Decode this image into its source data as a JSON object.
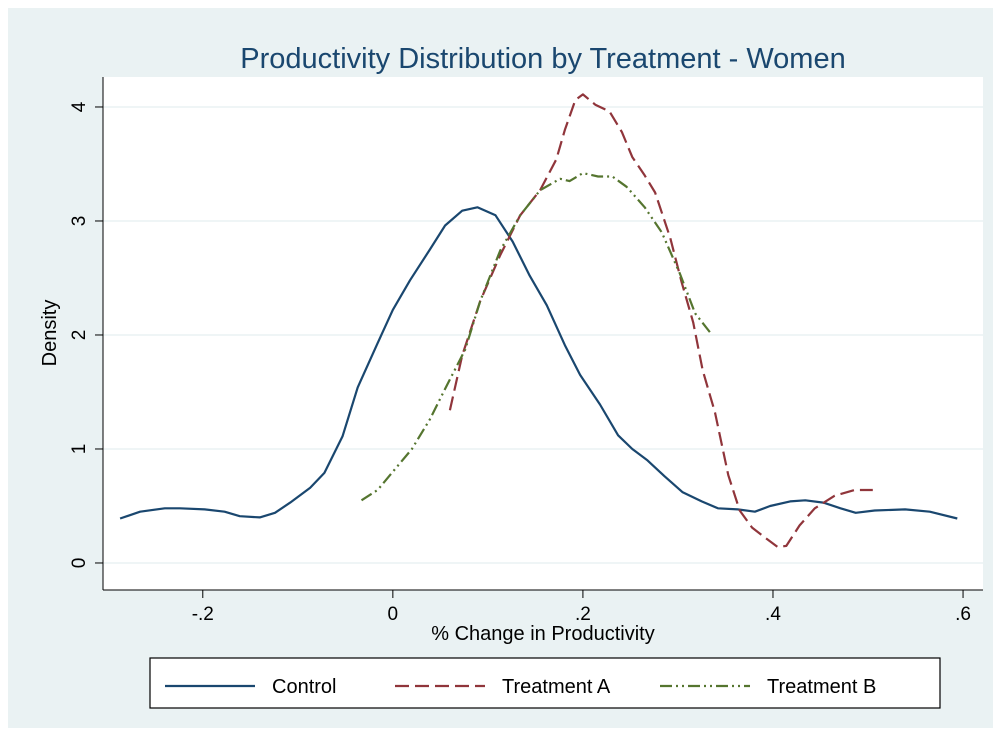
{
  "chart_data": {
    "type": "line",
    "title": "Productivity Distribution by Treatment - Women",
    "x_label": "% Change in Productivity",
    "y_label": "Density",
    "xlim": [
      -0.305,
      0.621
    ],
    "ylim": [
      -0.237,
      4.263
    ],
    "xticks": [
      {
        "value": -0.2,
        "label": "-.2"
      },
      0,
      {
        "value": 0.2,
        "label": ".2"
      },
      {
        "value": 0.4,
        "label": ".4"
      },
      {
        "value": 0.6,
        "label": ".6"
      }
    ],
    "yticks": [
      0,
      1,
      2,
      3,
      4
    ],
    "grid": true,
    "legend": "bottom",
    "series": [
      {
        "name": "Control",
        "color": "#1a476f",
        "line_style": "solid",
        "x": [
          -0.287,
          -0.266,
          -0.24,
          -0.224,
          -0.198,
          -0.177,
          -0.161,
          -0.14,
          -0.124,
          -0.108,
          -0.087,
          -0.072,
          -0.053,
          -0.037,
          -0.017,
          0.0,
          0.018,
          0.039,
          0.055,
          0.073,
          0.089,
          0.108,
          0.126,
          0.144,
          0.162,
          0.181,
          0.197,
          0.218,
          0.237,
          0.252,
          0.268,
          0.286,
          0.305,
          0.325,
          0.342,
          0.363,
          0.381,
          0.397,
          0.418,
          0.434,
          0.453,
          0.471,
          0.487,
          0.507,
          0.539,
          0.565,
          0.594
        ],
        "values": [
          0.39,
          0.45,
          0.48,
          0.48,
          0.47,
          0.45,
          0.41,
          0.4,
          0.44,
          0.53,
          0.66,
          0.79,
          1.11,
          1.54,
          1.91,
          2.22,
          2.48,
          2.75,
          2.96,
          3.09,
          3.12,
          3.05,
          2.82,
          2.52,
          2.26,
          1.91,
          1.65,
          1.39,
          1.12,
          1.0,
          0.9,
          0.76,
          0.62,
          0.54,
          0.48,
          0.47,
          0.45,
          0.5,
          0.54,
          0.55,
          0.53,
          0.48,
          0.44,
          0.46,
          0.47,
          0.45,
          0.39
        ]
      },
      {
        "name": "Treatment A",
        "color": "#90353b",
        "line_style": "dashed",
        "x": [
          0.06,
          0.073,
          0.092,
          0.113,
          0.134,
          0.155,
          0.172,
          0.181,
          0.192,
          0.2,
          0.213,
          0.228,
          0.241,
          0.252,
          0.265,
          0.276,
          0.292,
          0.304,
          0.316,
          0.326,
          0.339,
          0.353,
          0.365,
          0.378,
          0.392,
          0.405,
          0.414,
          0.428,
          0.444,
          0.465,
          0.486,
          0.505
        ],
        "values": [
          1.34,
          1.82,
          2.3,
          2.7,
          3.05,
          3.27,
          3.54,
          3.8,
          4.06,
          4.11,
          4.02,
          3.96,
          3.78,
          3.56,
          3.4,
          3.25,
          2.85,
          2.46,
          2.11,
          1.69,
          1.32,
          0.77,
          0.46,
          0.31,
          0.22,
          0.14,
          0.15,
          0.33,
          0.48,
          0.59,
          0.64,
          0.64
        ]
      },
      {
        "name": "Treatment B",
        "color": "#55752f",
        "line_style": "dashdot",
        "x": [
          -0.033,
          -0.016,
          0.002,
          0.02,
          0.039,
          0.057,
          0.076,
          0.092,
          0.113,
          0.134,
          0.155,
          0.176,
          0.186,
          0.2,
          0.216,
          0.231,
          0.246,
          0.265,
          0.283,
          0.302,
          0.318,
          0.334
        ],
        "values": [
          0.55,
          0.64,
          0.82,
          1.0,
          1.26,
          1.56,
          1.87,
          2.3,
          2.74,
          3.05,
          3.27,
          3.37,
          3.35,
          3.42,
          3.39,
          3.39,
          3.3,
          3.12,
          2.9,
          2.54,
          2.19,
          2.02
        ]
      }
    ]
  }
}
